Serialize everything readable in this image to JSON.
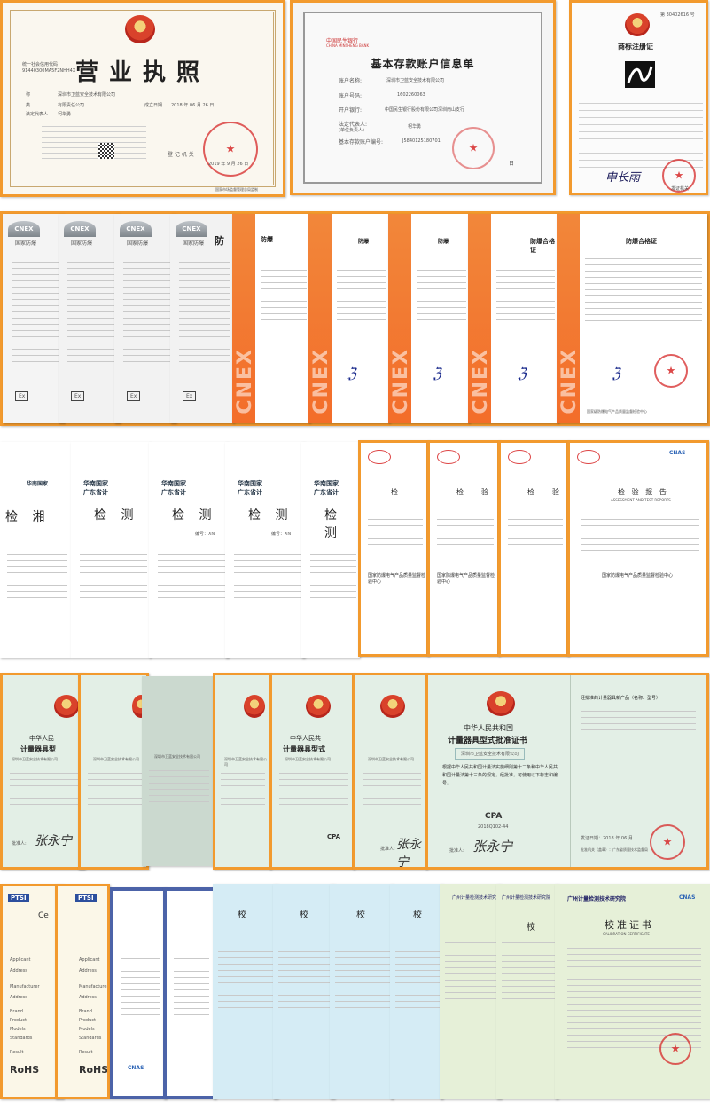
{
  "row1": {
    "license": {
      "title": "营业执照",
      "credit_label": "统一社会信用代码",
      "credit_code": "91440300MA5F2NHH4X",
      "company_label": "称",
      "company": "深圳市卫蓝安全技术有限公司",
      "type_label": "类",
      "type": "有限责任公司",
      "rep_label": "法定代表人",
      "rep": "柯华勇",
      "date_label": "成立日期",
      "date": "2018 年 06 月 26 日",
      "authority": "登 记 机 关",
      "issue_date": "2019 年 9 月 26 日",
      "footer": "国家市场监督管理总局监制"
    },
    "bank": {
      "bank_name": "中国民生银行",
      "bank_name_en": "CHINA MINSHENG BANK",
      "title": "基本存款账户信息单",
      "name_label": "账户名称:",
      "name": "深圳市卫蓝安全技术有限公司",
      "number_label": "账户号码:",
      "number": "1602260063",
      "bank_label": "开户银行:",
      "bank": "中国民生银行股份有限公司深圳南山支行",
      "rep_label": "法定代表人:",
      "rep_label2": "(单位负责人)",
      "rep": "柯华勇",
      "permit_label": "基本存款账户编号:",
      "permit": "J5840125180701",
      "date_suffix": "日"
    },
    "trademark": {
      "title": "商标注册证",
      "reg_no": "第 30402616 号",
      "authority": "发证机关",
      "sig": "申长雨"
    }
  },
  "row2": {
    "badge": "CNEX",
    "brand": "国家防爆",
    "cert_title": "防爆合格证",
    "short_title": "防",
    "cert_title_partial": "防爆",
    "ex": "Ex",
    "ccc_sub": "CQST",
    "agency": "国家级防爆电气产品质量监督检验中心"
  },
  "row3": {
    "logo": "华南国家",
    "logo2": "广东省计",
    "report": "检 测",
    "report_partial": "检 测",
    "report_cut": "检 湘",
    "ref": "编号：XN",
    "inspect": "检",
    "inspect2": "验",
    "inspect_title": "检   验   报   告",
    "en_sub": "ASSESSMENT AND TEST REPORTS",
    "center": "国家防爆电气产品质量监督检验中心",
    "cnas": "CNAS"
  },
  "row4": {
    "prc": "中华人民共和国",
    "cert": "计量器具型式批准证书",
    "prc_cut": "中华人民",
    "cert_cut": "计量器具型",
    "prc_cut2": "中华人民共",
    "cert_cut2": "计量器具型式",
    "company": "深圳市卫蓝安全技术有限公司",
    "body": "根据中华人民共和国计量法实施细则第十二条和中华人民共和国计量法第十三条的规定，经批准，可使用以下标志和编号。",
    "pa": "CPA",
    "code": "2018Q102-44",
    "approver_label": "批准人:",
    "sig": "张永宁",
    "panel_title": "经批准的计量器具新产品（名称、型号）",
    "issue": "发证日期：2018 年 06 月",
    "issuer": "批准机关（盖章）：广东省质量技术监督局"
  },
  "row5": {
    "ptsi": "PTSI",
    "ce": "Ce",
    "rohs": "RoHS",
    "calib": "校",
    "calib_title": "校准证书",
    "calib_en": "CALIBRATION CERTIFICATE",
    "guangzhou": "广州计量检测技术研究院",
    "cnas": "CNAS",
    "labels": [
      "Applicant",
      "Address",
      "Manufacturer",
      "Address",
      "Brand",
      "Product",
      "Models",
      "Standards",
      "Result"
    ]
  }
}
